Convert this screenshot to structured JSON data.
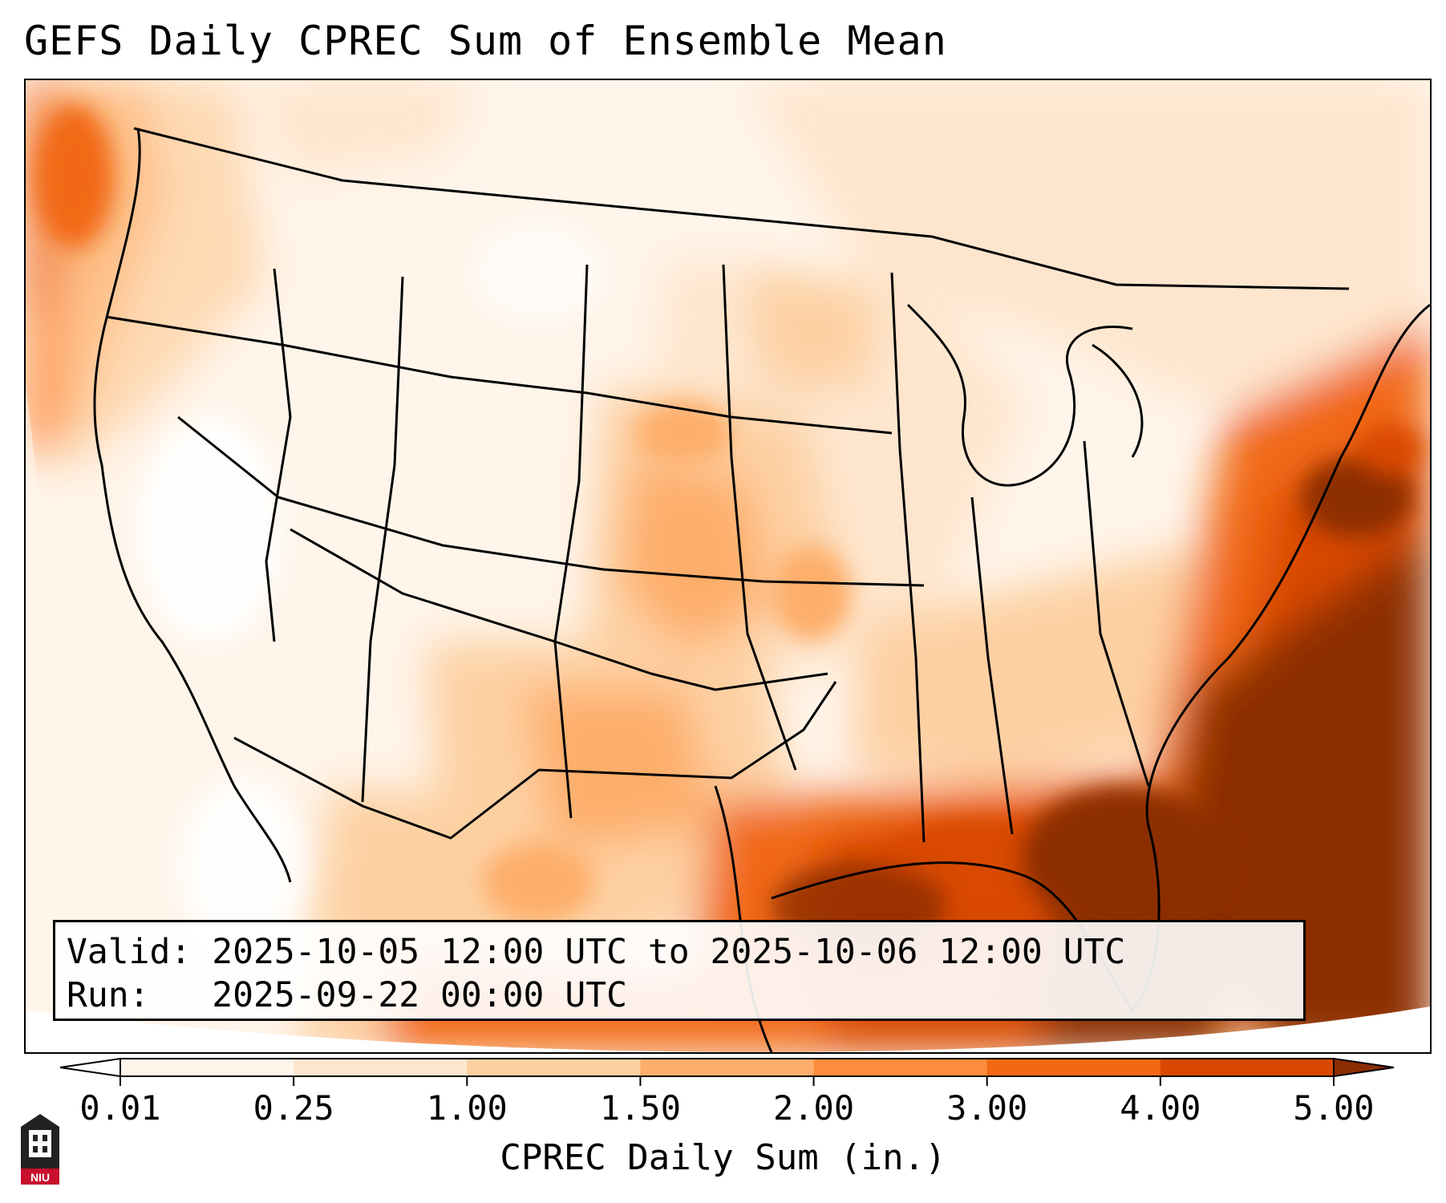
{
  "title": "GEFS Daily CPREC Sum of Ensemble Mean",
  "info": {
    "valid_label": "Valid:",
    "valid_value": "2025-10-05 12:00 UTC to 2025-10-06 12:00 UTC",
    "run_label": "Run:",
    "run_value": "2025-09-22 00:00 UTC"
  },
  "colorbar": {
    "label": "CPREC Daily Sum (in.)",
    "ticks": [
      "0.01",
      "0.25",
      "1.00",
      "1.50",
      "2.00",
      "3.00",
      "4.00",
      "5.00"
    ],
    "colors": [
      "#fff5eb",
      "#fee6ce",
      "#fdd0a2",
      "#fdae6b",
      "#fd8d3c",
      "#f16913",
      "#d94801",
      "#8c2d04"
    ]
  },
  "logo": {
    "text": "NIU",
    "color": "#c8102e"
  },
  "map": {
    "projection": "Lambert conformal",
    "region": "Contiguous United States",
    "field": "CPREC Daily Sum (in.)",
    "heavy_areas": [
      "Gulf of Mexico",
      "Florida",
      "western Atlantic",
      "Pacific Northwest coast"
    ]
  }
}
